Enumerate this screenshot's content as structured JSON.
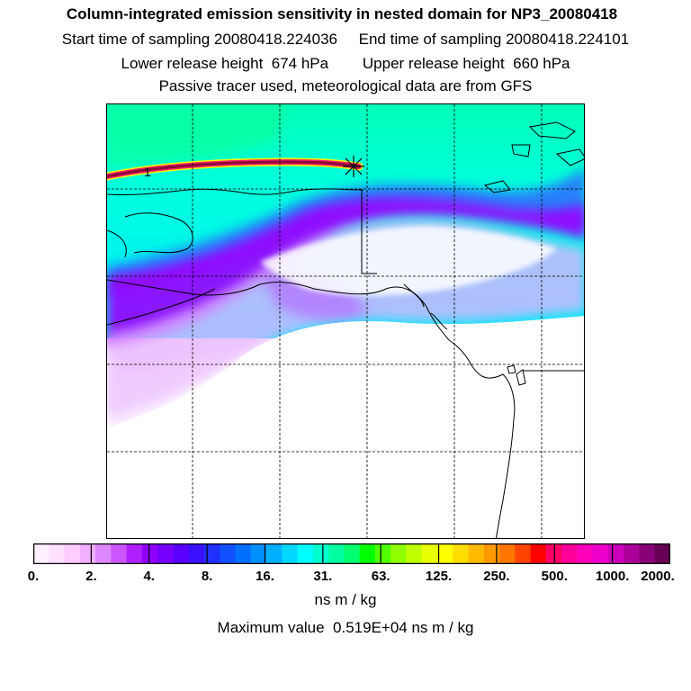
{
  "header": {
    "title": "Column-integrated emission sensitivity in nested domain for NP3_20080418",
    "line1": "Start time of sampling 20080418.224036     End time of sampling 20080418.224101",
    "line2": "Lower release height  674 hPa        Upper release height  660 hPa",
    "line3": "Passive tracer used, meteorological data are from GFS"
  },
  "map": {
    "release_label": "1",
    "colors": {
      "ocean_north": "#00ffcc",
      "ocean_mid": "#00e0ff",
      "band_blue": "#2f6cff",
      "band_purple": "#9b00ff",
      "light_purple": "#e6b0ff",
      "trajectory": "#8b0a3a",
      "coast": "#000000"
    }
  },
  "colorbar": {
    "colors": [
      "#fff0ff",
      "#ffe0ff",
      "#ffccff",
      "#f0b0ff",
      "#dd88ff",
      "#cc55ff",
      "#b020ff",
      "#9000ff",
      "#7700ff",
      "#5a00ff",
      "#3a10ff",
      "#2030ff",
      "#1050ff",
      "#0070ff",
      "#0090ff",
      "#00b0ff",
      "#00d8ff",
      "#00ffff",
      "#00ffd0",
      "#00ffa0",
      "#00ff70",
      "#00ff00",
      "#50ff00",
      "#90ff00",
      "#c0ff00",
      "#e8ff00",
      "#ffff00",
      "#ffdd00",
      "#ffbb00",
      "#ff9900",
      "#ff7700",
      "#ff4400",
      "#ff0000",
      "#ff0066",
      "#ff0099",
      "#ff00bb",
      "#ee00cc",
      "#cc00bb",
      "#aa0099",
      "#880077",
      "#660055"
    ],
    "tick_labels": [
      "0.",
      "2.",
      "4.",
      "8.",
      "16.",
      "31.",
      "63.",
      "125.",
      "250.",
      "500.",
      "1000.",
      "2000."
    ],
    "unit": "ns m / kg",
    "max_value_text": "Maximum value  0.519E+04 ns m / kg"
  }
}
